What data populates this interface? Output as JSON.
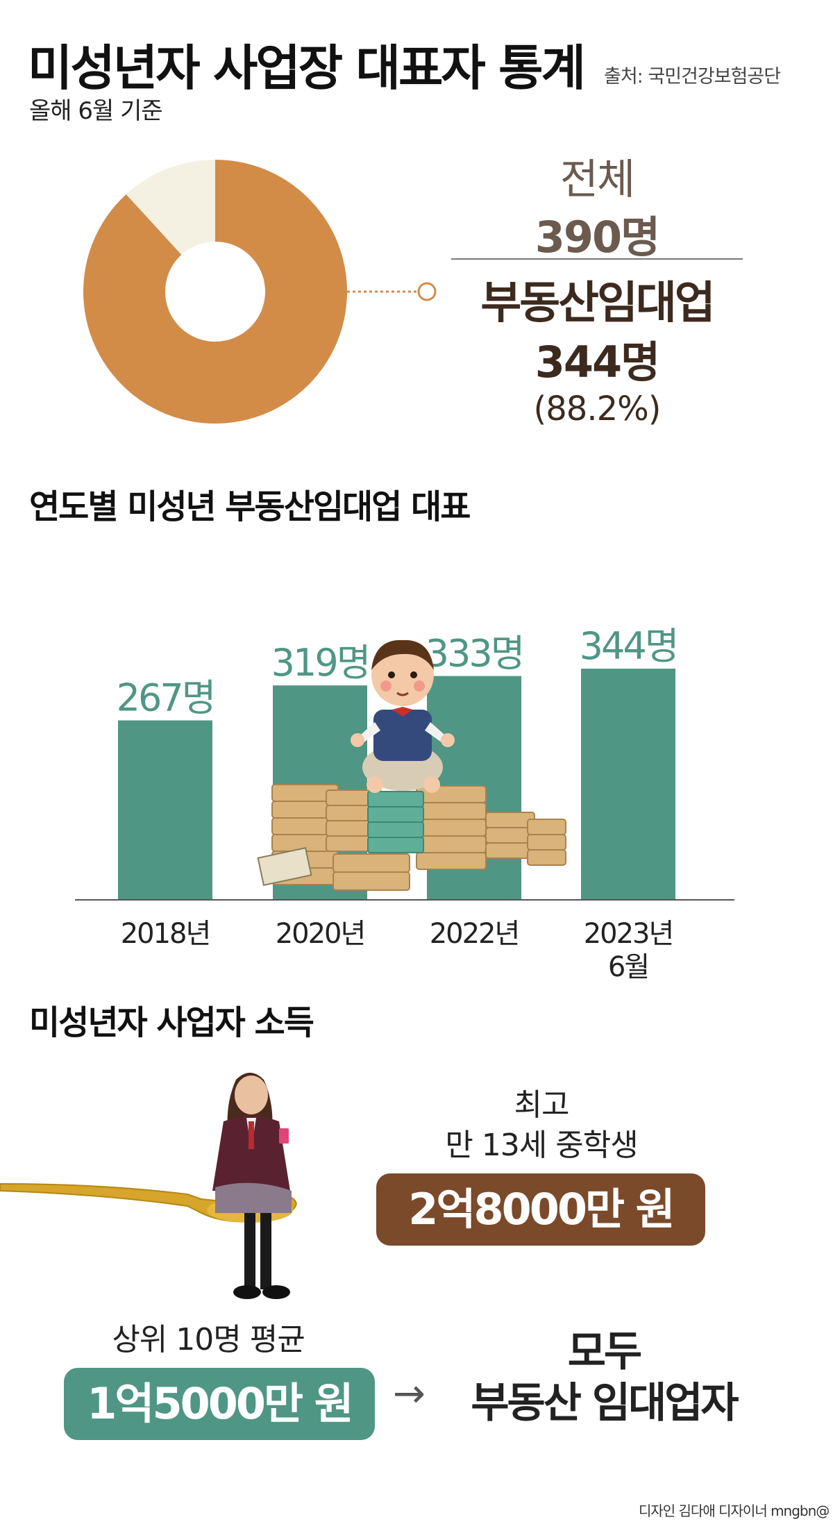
{
  "header": {
    "title": "미성년자 사업장 대표자 통계",
    "source": "출처: 국민건강보험공단",
    "subtitle": "올해 6월 기준"
  },
  "summary": {
    "total_label": "전체",
    "total_value": "390명",
    "share_label": "부동산임대업",
    "share_value": "344명",
    "share_pct": "(88.2%)"
  },
  "colors": {
    "brown": "#d28c48",
    "cream": "#f4f1e3",
    "teal": "#4f9685",
    "dark_brown": "#7a4a2a"
  },
  "bar_section": {
    "title": "연도별 미성년 부동산임대업 대표"
  },
  "chart_data": [
    {
      "type": "pie",
      "labels": [
        "부동산임대업",
        ""
      ],
      "values": [
        344,
        46
      ],
      "donut": true
    },
    {
      "type": "bar",
      "categories": [
        "2018년",
        "2020년",
        "2022년",
        "2023년\n6월"
      ],
      "values": [
        267,
        319,
        333,
        344
      ],
      "data_labels": [
        "267명",
        "319명",
        "333명",
        "344명"
      ]
    }
  ],
  "income": {
    "title": "미성년자 사업자 소득",
    "top_line1": "최고",
    "top_line2": "만 13세 중학생",
    "top_value": "2억8000만 원",
    "avg_label": "상위 10명 평균",
    "avg_value": "1억5000만 원",
    "arrow": "→",
    "all_line1": "모두",
    "all_line2": "부동산 임대업자"
  },
  "credit": "디자인 김다애 디자이너 mngbn@"
}
